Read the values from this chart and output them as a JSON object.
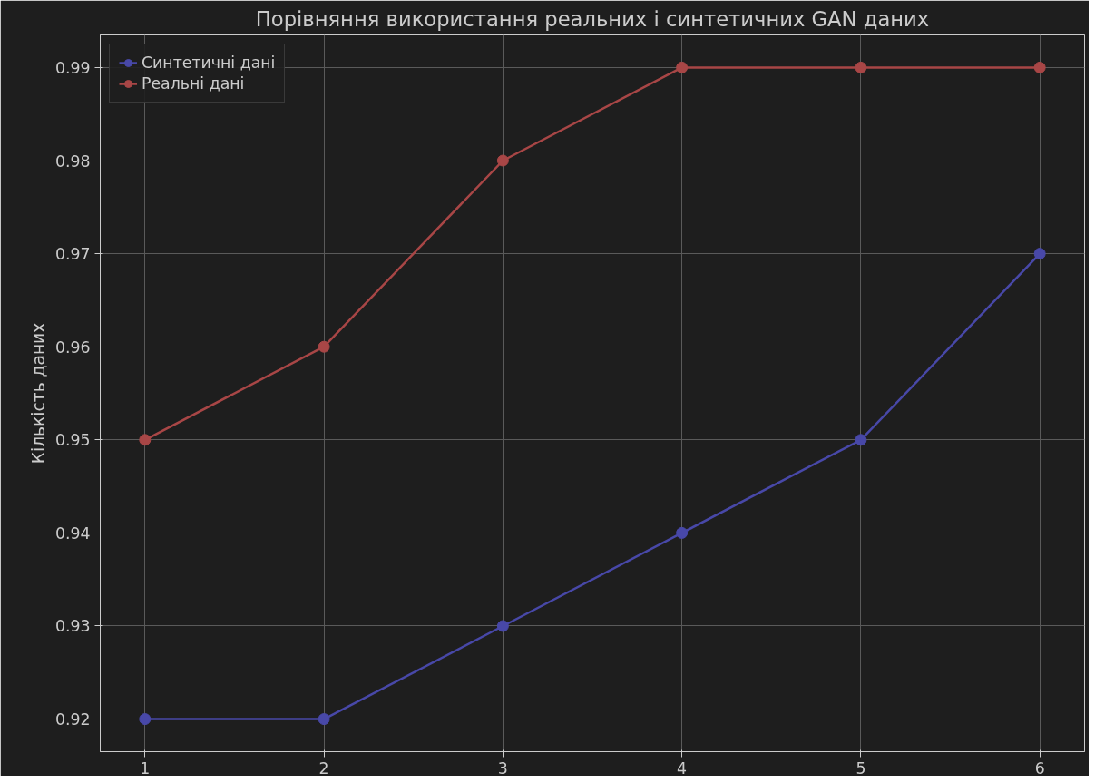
{
  "chart_data": {
    "type": "line",
    "title": "Порівняння використання реальних і синтетичних GAN даних",
    "ylabel": "Кількість даних",
    "x": [
      1,
      2,
      3,
      4,
      5,
      6
    ],
    "series": [
      {
        "name": "Синтетичні дані",
        "color": "#4848a8",
        "values": [
          0.92,
          0.92,
          0.93,
          0.94,
          0.95,
          0.97
        ]
      },
      {
        "name": "Реальні дані",
        "color": "#a84646",
        "values": [
          0.95,
          0.96,
          0.98,
          0.99,
          0.99,
          0.99
        ]
      }
    ],
    "xlim": [
      0.75,
      6.25
    ],
    "ylim": [
      0.9165,
      0.9935
    ],
    "xticks": [
      1,
      2,
      3,
      4,
      5,
      6
    ],
    "yticks": [
      0.92,
      0.93,
      0.94,
      0.95,
      0.96,
      0.97,
      0.98,
      0.99
    ],
    "grid": true,
    "legend": "top left",
    "marker": "circle",
    "line_style": "solid"
  }
}
